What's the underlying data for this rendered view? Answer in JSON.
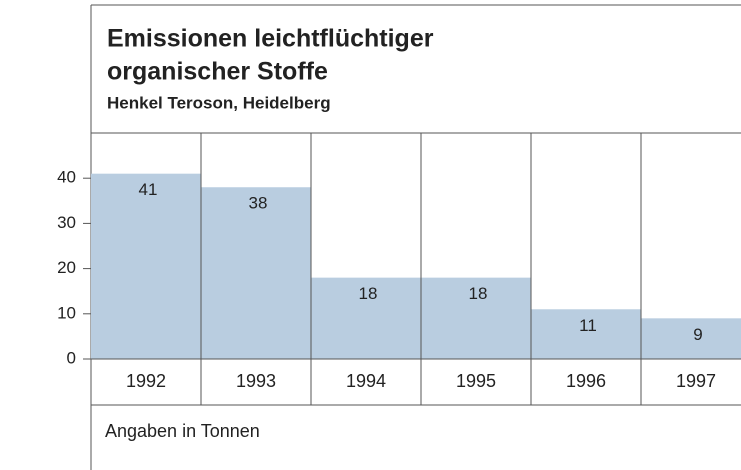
{
  "chart_data": {
    "type": "bar",
    "title": [
      "Emissionen leichtflüchtiger",
      "organischer Stoffe"
    ],
    "subtitle": "Henkel Teroson, Heidelberg",
    "categories": [
      "1992",
      "1993",
      "1994",
      "1995",
      "1996",
      "1997"
    ],
    "values": [
      41,
      38,
      18,
      18,
      11,
      9
    ],
    "color": "#b9cde0",
    "ylim": [
      0,
      50
    ],
    "yticks": [
      0,
      10,
      20,
      30,
      40
    ],
    "note": "Angaben in Tonnen"
  }
}
